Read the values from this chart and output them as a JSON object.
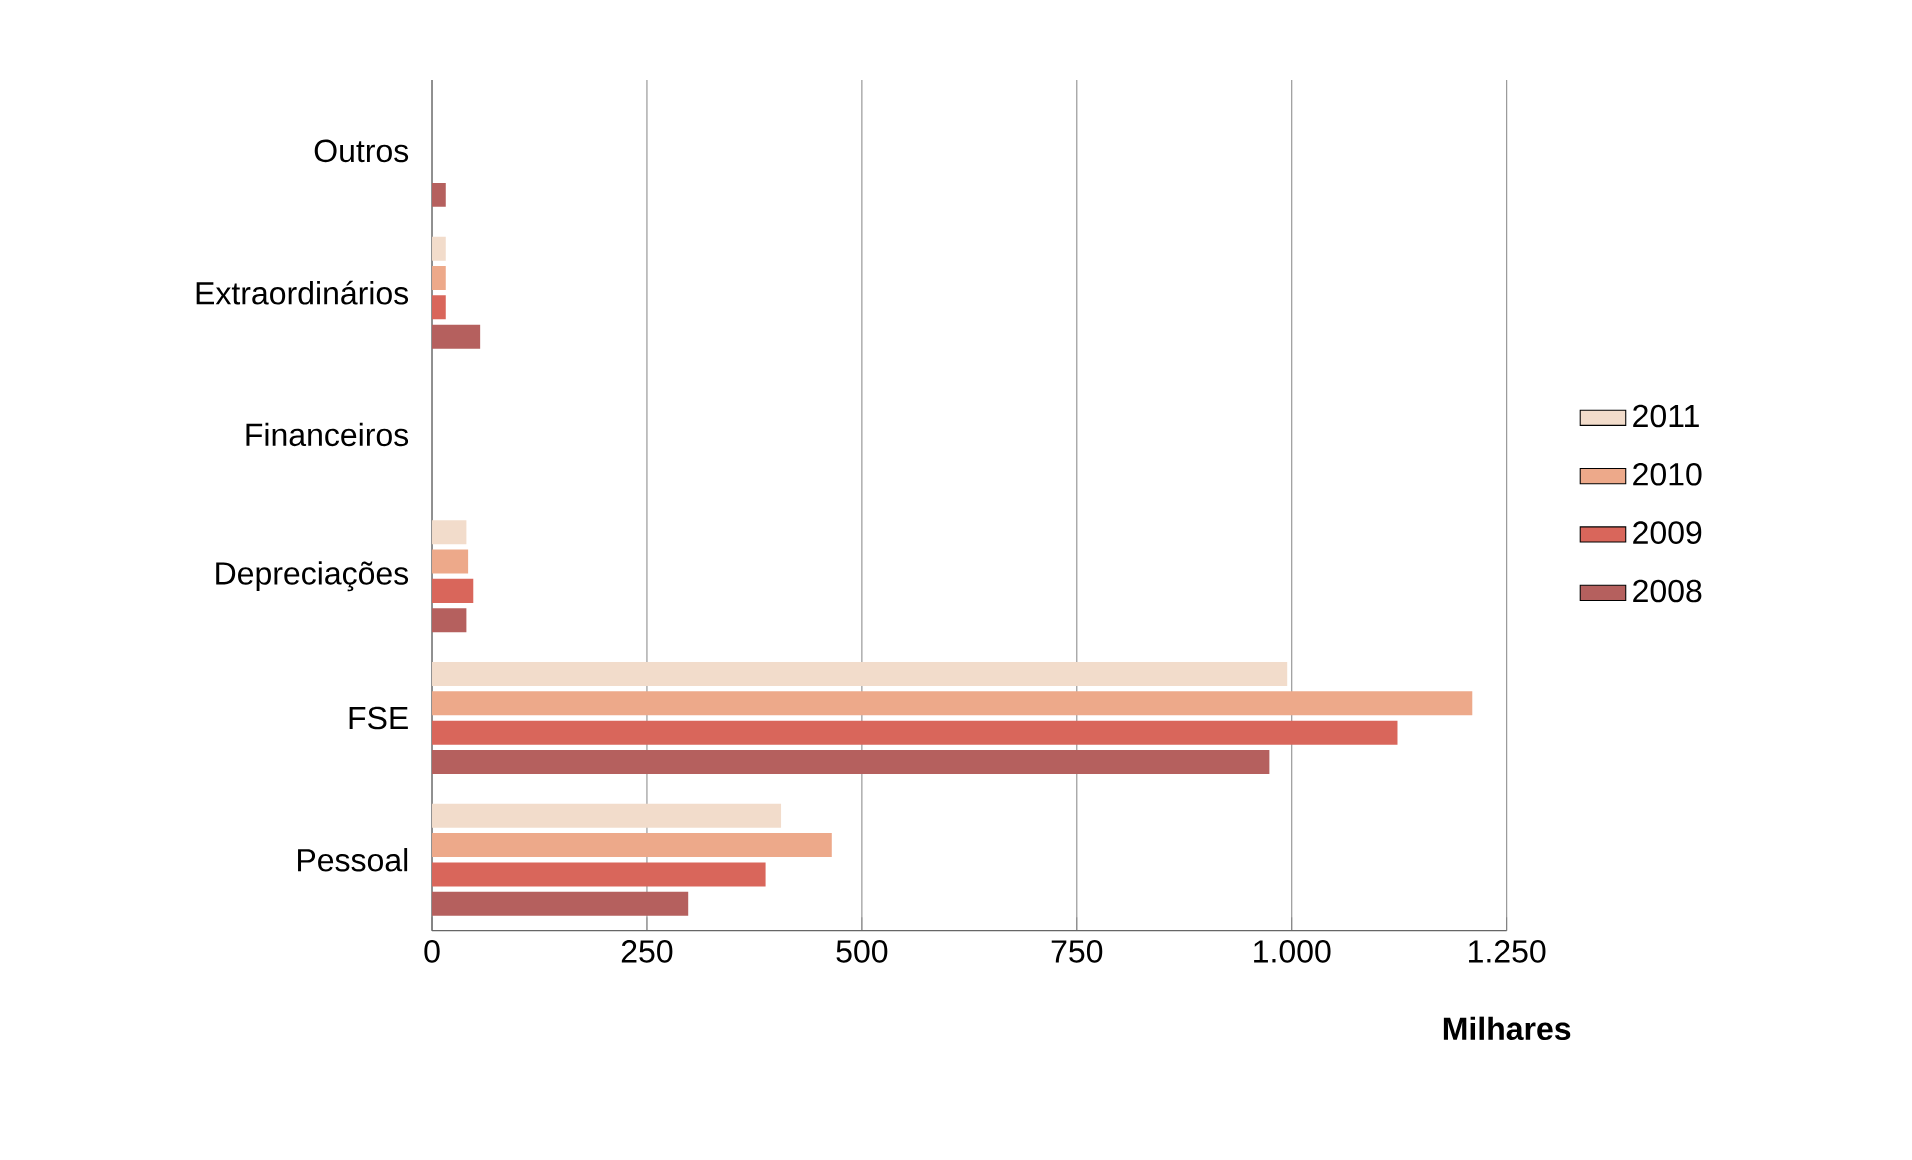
{
  "chart_data": {
    "type": "bar",
    "orientation": "horizontal",
    "categories": [
      "Outros",
      "Extraordinários",
      "Financeiros",
      "Depreciações",
      "FSE",
      "Pessoal"
    ],
    "series": [
      {
        "name": "2011",
        "color": "#f2dccb",
        "values": [
          null,
          16,
          null,
          40,
          995,
          406
        ]
      },
      {
        "name": "2010",
        "color": "#eda98a",
        "values": [
          null,
          16,
          null,
          42,
          1210,
          465
        ]
      },
      {
        "name": "2009",
        "color": "#d9665b",
        "values": [
          null,
          16,
          null,
          48,
          1123,
          388
        ]
      },
      {
        "name": "2008",
        "color": "#b5605e",
        "values": [
          16,
          56,
          null,
          40,
          974,
          298
        ]
      }
    ],
    "xlim": [
      0,
      1250
    ],
    "xticks": [
      0,
      250,
      500,
      750,
      {
        "value": 1000,
        "label": "1.000"
      },
      {
        "value": 1250,
        "label": "1.250"
      }
    ],
    "xlabel": "Milhares",
    "grid": "x",
    "legend": "right"
  }
}
